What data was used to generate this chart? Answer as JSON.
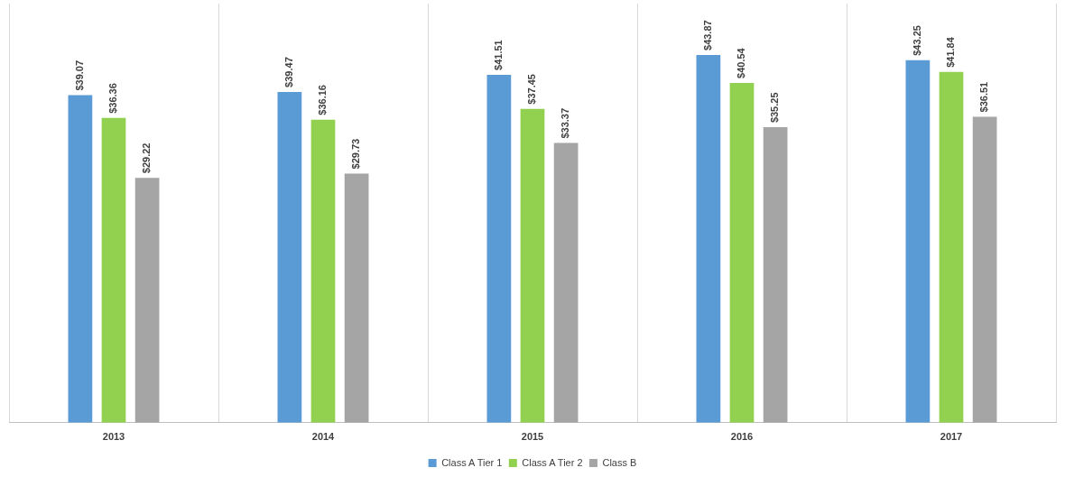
{
  "chart_data": {
    "type": "bar",
    "categories": [
      "2013",
      "2014",
      "2015",
      "2016",
      "2017"
    ],
    "series": [
      {
        "name": "Class A Tier 1",
        "color": "#5b9bd5",
        "values": [
          39.07,
          39.47,
          41.51,
          43.87,
          43.25
        ],
        "value_labels": [
          "$39.07",
          "$39.47",
          "$41.51",
          "$43.87",
          "$43.25"
        ]
      },
      {
        "name": "Class A Tier 2",
        "color": "#92d050",
        "values": [
          36.36,
          36.16,
          37.45,
          40.54,
          41.84
        ],
        "value_labels": [
          "$36.36",
          "$36.16",
          "$37.45",
          "$40.54",
          "$41.84"
        ]
      },
      {
        "name": "Class B",
        "color": "#a5a5a5",
        "values": [
          29.22,
          29.73,
          33.37,
          35.25,
          36.51
        ],
        "value_labels": [
          "$29.22",
          "$29.73",
          "$33.37",
          "$35.25",
          "$36.51"
        ]
      }
    ],
    "grid": "x",
    "legend": "bottom"
  }
}
